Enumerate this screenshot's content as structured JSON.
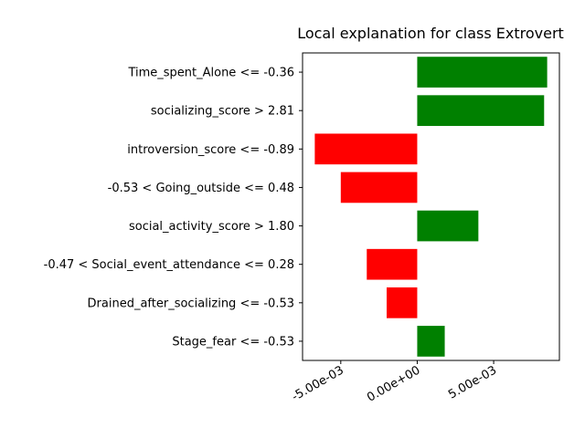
{
  "chart_data": {
    "type": "bar",
    "orientation": "horizontal",
    "title": "Local explanation for class Extrovert",
    "xlabel": "",
    "ylabel": "",
    "categories": [
      "Time_spent_Alone <= -0.36",
      "socializing_score > 2.81",
      "introversion_score <= -0.89",
      "-0.53 < Going_outside <= 0.48",
      "social_activity_score > 1.80",
      "-0.47 < Social_event_attendance <= 0.28",
      "Drained_after_socializing <= -0.53",
      "Stage_fear <= -0.53"
    ],
    "values": [
      0.0085,
      0.0083,
      -0.0067,
      -0.005,
      0.004,
      -0.0033,
      -0.002,
      0.0018
    ],
    "xlim": [
      -0.0075,
      0.0093
    ],
    "xticks": [
      -0.005,
      0.0,
      0.005
    ],
    "xtick_labels": [
      "-5.00e-03",
      "0.00e+00",
      "5.00e-03"
    ],
    "colors": {
      "positive": "#008000",
      "negative": "#ff0000"
    },
    "grid": false,
    "legend": "none"
  }
}
